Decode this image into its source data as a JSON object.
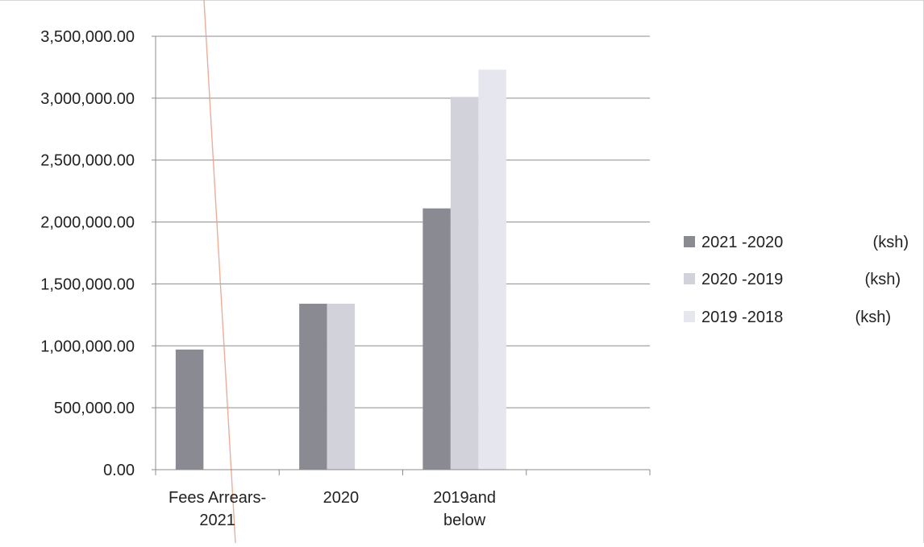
{
  "chart_data": {
    "type": "bar",
    "categories": [
      "Fees Arrears-2021",
      "2020",
      "2019and below"
    ],
    "category_lines": [
      [
        "Fees Arrears-",
        "2021"
      ],
      [
        "2020"
      ],
      [
        "2019and",
        "below"
      ]
    ],
    "y_ticks": [
      "0.00",
      "500,000.00",
      "1,000,000.00",
      "1,500,000.00",
      "2,000,000.00",
      "2,500,000.00",
      "3,000,000.00",
      "3,500,000.00"
    ],
    "ylim": [
      0,
      3500000
    ],
    "grid": true,
    "legend_position": "right",
    "series": [
      {
        "name": "2021 -2020",
        "unit": "(ksh)",
        "color": "#8a8b92",
        "values": [
          970000,
          1340000,
          2110000
        ]
      },
      {
        "name": "2020 -2019",
        "unit": "(ksh)",
        "color": "#d2d2da",
        "values": [
          0,
          1340000,
          3010000
        ]
      },
      {
        "name": "2019 -2018",
        "unit": "(ksh)",
        "color": "#e6e6ee",
        "values": [
          0,
          0,
          3230000
        ]
      }
    ]
  }
}
